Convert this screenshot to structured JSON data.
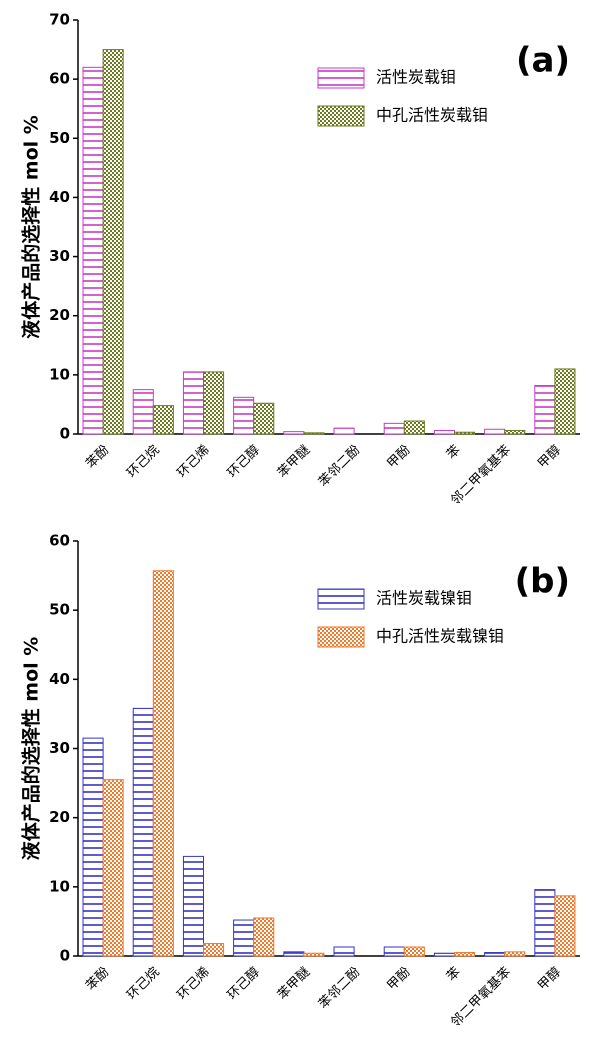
{
  "chart_data": [
    {
      "type": "bar",
      "panel_label": "(a)",
      "y_label": "液体产品的选择性 mol %",
      "categories": [
        "苯酚",
        "环己烷",
        "环己烯",
        "环己醇",
        "苯甲醚",
        "苯邻二酚",
        "甲酚",
        "苯",
        "邻二甲氧基苯",
        "甲醇"
      ],
      "series": [
        {
          "name": "活性炭载钼",
          "color": "#c43cc4",
          "pattern": "hlines",
          "values": [
            62,
            7.5,
            10.5,
            6.2,
            0.4,
            1.0,
            1.8,
            0.6,
            0.8,
            8.2
          ]
        },
        {
          "name": "中孔活性炭载钼",
          "color": "#6b7a1e",
          "pattern": "checker",
          "values": [
            65,
            4.8,
            10.5,
            5.2,
            0.2,
            0,
            2.2,
            0.3,
            0.6,
            11
          ]
        }
      ],
      "ylim": [
        0,
        70
      ],
      "yticks": [
        0,
        10,
        20,
        30,
        40,
        50,
        60,
        70
      ]
    },
    {
      "type": "bar",
      "panel_label": "(b)",
      "y_label": "液体产品的选择性 mol %",
      "categories": [
        "苯酚",
        "环己烷",
        "环己烯",
        "环己醇",
        "苯甲醚",
        "苯邻二酚",
        "甲酚",
        "苯",
        "邻二甲氧基苯",
        "甲醇"
      ],
      "series": [
        {
          "name": "活性炭载镍钼",
          "color": "#3434c4",
          "pattern": "hlines",
          "values": [
            31.5,
            35.8,
            14.4,
            5.2,
            0.6,
            1.3,
            1.3,
            0.4,
            0.5,
            9.6
          ]
        },
        {
          "name": "中孔活性炭载镍钼",
          "color": "#f07a2a",
          "pattern": "checker",
          "values": [
            25.5,
            55.7,
            1.8,
            5.5,
            0.4,
            0,
            1.3,
            0.5,
            0.6,
            8.7
          ]
        }
      ],
      "ylim": [
        0,
        60
      ],
      "yticks": [
        0,
        10,
        20,
        30,
        40,
        50,
        60
      ]
    }
  ]
}
